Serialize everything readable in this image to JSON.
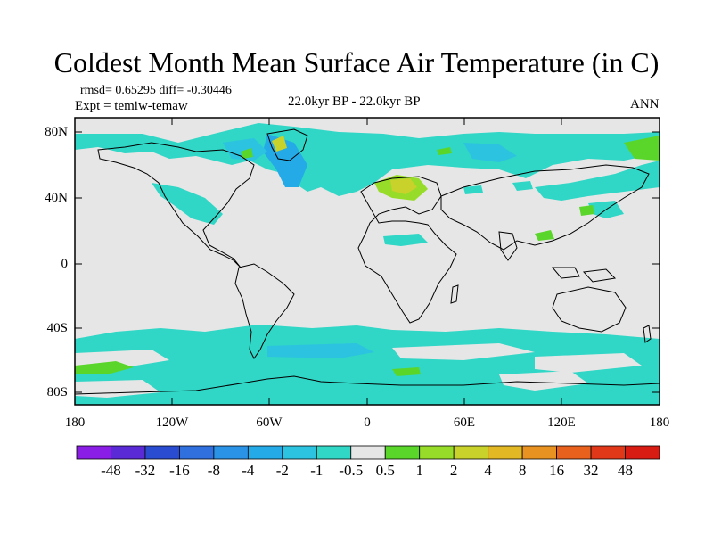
{
  "title": "Coldest Month Mean Surface Air Temperature (in C)",
  "stats": "rmsd= 0.65295 diff= -0.30446",
  "experiment": "Expt = temiw-temaw",
  "period": "22.0kyr BP - 22.0kyr BP",
  "season": "ANN",
  "lat_ticks": [
    "80N",
    "40N",
    "0",
    "40S",
    "80S"
  ],
  "lon_ticks": [
    "180",
    "120W",
    "60W",
    "0",
    "60E",
    "120E",
    "180"
  ],
  "colorbar": {
    "labels": [
      "-48",
      "-32",
      "-16",
      "-8",
      "-4",
      "-2",
      "-1",
      "-0.5",
      "0.5",
      "1",
      "2",
      "4",
      "8",
      "16",
      "32",
      "48"
    ],
    "colors": [
      "#8a1ee6",
      "#5a2ad6",
      "#2a4cd0",
      "#2f70de",
      "#2b93e6",
      "#25aae8",
      "#2cc3e0",
      "#30d6c6",
      "#e6e6e6",
      "#5ad62a",
      "#98dc2a",
      "#c8d22a",
      "#e2b824",
      "#e89222",
      "#e8621e",
      "#e2381a",
      "#d81c14"
    ]
  },
  "colors": {
    "background": "#e6e6e6",
    "coast": "#000000"
  }
}
